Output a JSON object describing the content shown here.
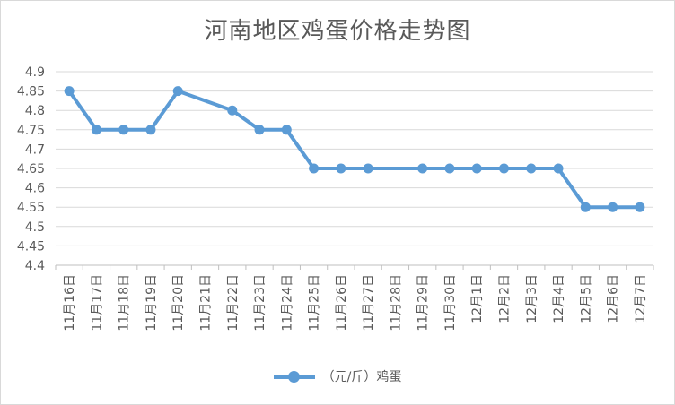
{
  "chart_data": {
    "type": "line",
    "title": "河南地区鸡蛋价格走势图",
    "categories": [
      "11月16日",
      "11月17日",
      "11月18日",
      "11月19日",
      "11月20日",
      "11月21日",
      "11月22日",
      "11月23日",
      "11月24日",
      "11月25日",
      "11月26日",
      "11月27日",
      "11月28日",
      "11月29日",
      "11月30日",
      "12月1日",
      "12月2日",
      "12月3日",
      "12月4日",
      "12月5日",
      "12月6日",
      "12月7日"
    ],
    "series": [
      {
        "name": "（元/斤）鸡蛋",
        "values": [
          4.85,
          4.75,
          4.75,
          4.75,
          4.85,
          null,
          4.8,
          4.75,
          4.75,
          4.65,
          4.65,
          4.65,
          null,
          4.65,
          4.65,
          4.65,
          4.65,
          4.65,
          4.65,
          4.55,
          4.55,
          4.55
        ],
        "color": "#5b9bd5"
      }
    ],
    "yticks": [
      "4.4",
      "4.45",
      "4.5",
      "4.55",
      "4.6",
      "4.65",
      "4.7",
      "4.75",
      "4.8",
      "4.85",
      "4.9"
    ],
    "ylim": [
      4.4,
      4.9
    ],
    "grid": true,
    "legend": "bottom"
  }
}
